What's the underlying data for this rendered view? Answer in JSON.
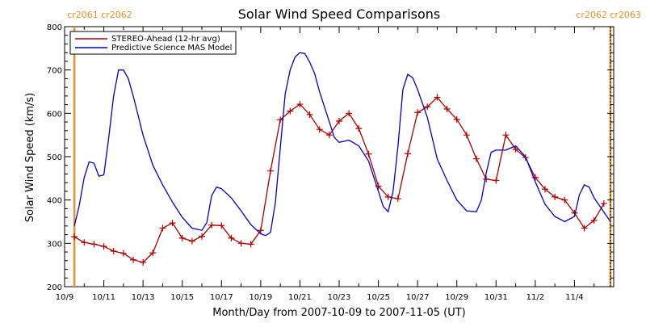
{
  "chart_data": {
    "type": "line",
    "title": "Solar Wind Speed Comparisons",
    "xlabel": "Month/Day from 2007-10-09 to 2007-11-05 (UT)",
    "ylabel": "Solar Wind Speed (km/s)",
    "xlim": [
      "2007-10-09",
      "2007-11-05"
    ],
    "ylim": [
      200,
      800
    ],
    "x_ticks": [
      "10/9",
      "10/11",
      "10/13",
      "10/15",
      "10/17",
      "10/19",
      "10/21",
      "10/23",
      "10/25",
      "10/27",
      "10/29",
      "10/31",
      "11/2",
      "11/4"
    ],
    "y_ticks": [
      200,
      300,
      400,
      500,
      600,
      700,
      800
    ],
    "legend_position": "top-left",
    "carrington_markers": [
      {
        "date": "2007-10-09 12:00",
        "label": "cr2061 cr2062",
        "color": "#e6912a"
      },
      {
        "date": "2007-11-05 20:00",
        "label": "cr2062 cr2063",
        "color": "#e6912a"
      }
    ],
    "series": [
      {
        "name": "STEREO-Ahead (12-hr avg)",
        "color": "#aa0000",
        "marker": "plus",
        "points": [
          [
            "2007-10-09 12:00",
            315
          ],
          [
            "2007-10-10 00:00",
            302
          ],
          [
            "2007-10-10 12:00",
            298
          ],
          [
            "2007-10-11 00:00",
            293
          ],
          [
            "2007-10-11 12:00",
            282
          ],
          [
            "2007-10-12 00:00",
            277
          ],
          [
            "2007-10-12 12:00",
            262
          ],
          [
            "2007-10-13 00:00",
            256
          ],
          [
            "2007-10-13 12:00",
            278
          ],
          [
            "2007-10-14 00:00",
            335
          ],
          [
            "2007-10-14 12:00",
            347
          ],
          [
            "2007-10-15 00:00",
            312
          ],
          [
            "2007-10-15 12:00",
            305
          ],
          [
            "2007-10-16 00:00",
            316
          ],
          [
            "2007-10-16 12:00",
            342
          ],
          [
            "2007-10-17 00:00",
            341
          ],
          [
            "2007-10-17 12:00",
            312
          ],
          [
            "2007-10-18 00:00",
            300
          ],
          [
            "2007-10-18 12:00",
            298
          ],
          [
            "2007-10-19 00:00",
            330
          ],
          [
            "2007-10-19 12:00",
            467
          ],
          [
            "2007-10-20 00:00",
            585
          ],
          [
            "2007-10-20 12:00",
            605
          ],
          [
            "2007-10-21 00:00",
            621
          ],
          [
            "2007-10-21 12:00",
            597
          ],
          [
            "2007-10-22 00:00",
            563
          ],
          [
            "2007-10-22 12:00",
            550
          ],
          [
            "2007-10-23 00:00",
            582
          ],
          [
            "2007-10-23 12:00",
            600
          ],
          [
            "2007-10-24 00:00",
            565
          ],
          [
            "2007-10-24 12:00",
            506
          ],
          [
            "2007-10-25 00:00",
            432
          ],
          [
            "2007-10-25 12:00",
            407
          ],
          [
            "2007-10-26 00:00",
            403
          ],
          [
            "2007-10-26 12:00",
            507
          ],
          [
            "2007-10-27 00:00",
            602
          ],
          [
            "2007-10-27 12:00",
            615
          ],
          [
            "2007-10-28 00:00",
            637
          ],
          [
            "2007-10-28 12:00",
            610
          ],
          [
            "2007-10-29 00:00",
            586
          ],
          [
            "2007-10-29 12:00",
            550
          ],
          [
            "2007-10-30 00:00",
            495
          ],
          [
            "2007-10-30 12:00",
            448
          ],
          [
            "2007-10-31 00:00",
            445
          ],
          [
            "2007-10-31 12:00",
            550
          ],
          [
            "2007-11-01 00:00",
            517
          ],
          [
            "2007-11-01 12:00",
            498
          ],
          [
            "2007-11-02 00:00",
            452
          ],
          [
            "2007-11-02 12:00",
            425
          ],
          [
            "2007-11-03 00:00",
            407
          ],
          [
            "2007-11-03 12:00",
            400
          ],
          [
            "2007-11-04 00:00",
            370
          ],
          [
            "2007-11-04 12:00",
            335
          ],
          [
            "2007-11-05 00:00",
            353
          ],
          [
            "2007-11-05 12:00",
            392
          ]
        ]
      },
      {
        "name": "Predictive Science MAS Model",
        "color": "#0000cc",
        "marker": "none",
        "points": [
          [
            "2007-10-09 12:00",
            340
          ],
          [
            "2007-10-09 18:00",
            388
          ],
          [
            "2007-10-10 00:00",
            452
          ],
          [
            "2007-10-10 06:00",
            488
          ],
          [
            "2007-10-10 12:00",
            485
          ],
          [
            "2007-10-10 18:00",
            455
          ],
          [
            "2007-10-11 00:00",
            458
          ],
          [
            "2007-10-11 06:00",
            543
          ],
          [
            "2007-10-11 12:00",
            640
          ],
          [
            "2007-10-11 18:00",
            700
          ],
          [
            "2007-10-12 00:00",
            700
          ],
          [
            "2007-10-12 06:00",
            680
          ],
          [
            "2007-10-12 12:00",
            640
          ],
          [
            "2007-10-12 18:00",
            595
          ],
          [
            "2007-10-13 00:00",
            550
          ],
          [
            "2007-10-13 12:00",
            480
          ],
          [
            "2007-10-14 00:00",
            435
          ],
          [
            "2007-10-14 12:00",
            395
          ],
          [
            "2007-10-15 00:00",
            360
          ],
          [
            "2007-10-15 12:00",
            335
          ],
          [
            "2007-10-16 00:00",
            330
          ],
          [
            "2007-10-16 06:00",
            348
          ],
          [
            "2007-10-16 12:00",
            410
          ],
          [
            "2007-10-16 18:00",
            430
          ],
          [
            "2007-10-17 00:00",
            426
          ],
          [
            "2007-10-17 12:00",
            405
          ],
          [
            "2007-10-18 00:00",
            375
          ],
          [
            "2007-10-18 12:00",
            343
          ],
          [
            "2007-10-19 00:00",
            322
          ],
          [
            "2007-10-19 06:00",
            318
          ],
          [
            "2007-10-19 12:00",
            325
          ],
          [
            "2007-10-19 18:00",
            395
          ],
          [
            "2007-10-20 00:00",
            520
          ],
          [
            "2007-10-20 06:00",
            645
          ],
          [
            "2007-10-20 12:00",
            700
          ],
          [
            "2007-10-20 18:00",
            730
          ],
          [
            "2007-10-21 00:00",
            740
          ],
          [
            "2007-10-21 06:00",
            738
          ],
          [
            "2007-10-21 12:00",
            718
          ],
          [
            "2007-10-21 18:00",
            692
          ],
          [
            "2007-10-22 00:00",
            650
          ],
          [
            "2007-10-22 12:00",
            580
          ],
          [
            "2007-10-22 18:00",
            545
          ],
          [
            "2007-10-23 00:00",
            533
          ],
          [
            "2007-10-23 12:00",
            538
          ],
          [
            "2007-10-24 00:00",
            525
          ],
          [
            "2007-10-24 12:00",
            490
          ],
          [
            "2007-10-25 00:00",
            420
          ],
          [
            "2007-10-25 06:00",
            385
          ],
          [
            "2007-10-25 12:00",
            373
          ],
          [
            "2007-10-25 18:00",
            420
          ],
          [
            "2007-10-26 00:00",
            525
          ],
          [
            "2007-10-26 06:00",
            655
          ],
          [
            "2007-10-26 12:00",
            690
          ],
          [
            "2007-10-26 18:00",
            682
          ],
          [
            "2007-10-27 00:00",
            655
          ],
          [
            "2007-10-27 12:00",
            590
          ],
          [
            "2007-10-28 00:00",
            495
          ],
          [
            "2007-10-28 12:00",
            445
          ],
          [
            "2007-10-29 00:00",
            400
          ],
          [
            "2007-10-29 12:00",
            375
          ],
          [
            "2007-10-30 00:00",
            373
          ],
          [
            "2007-10-30 06:00",
            400
          ],
          [
            "2007-10-30 12:00",
            462
          ],
          [
            "2007-10-30 18:00",
            510
          ],
          [
            "2007-10-31 00:00",
            515
          ],
          [
            "2007-10-31 12:00",
            515
          ],
          [
            "2007-11-01 00:00",
            525
          ],
          [
            "2007-11-01 12:00",
            500
          ],
          [
            "2007-11-02 00:00",
            442
          ],
          [
            "2007-11-02 12:00",
            390
          ],
          [
            "2007-11-03 00:00",
            362
          ],
          [
            "2007-11-03 12:00",
            350
          ],
          [
            "2007-11-04 00:00",
            362
          ],
          [
            "2007-11-04 06:00",
            412
          ],
          [
            "2007-11-04 12:00",
            435
          ],
          [
            "2007-11-04 18:00",
            430
          ],
          [
            "2007-11-05 00:00",
            405
          ],
          [
            "2007-11-05 12:00",
            372
          ],
          [
            "2007-11-05 20:00",
            350
          ]
        ]
      }
    ]
  }
}
